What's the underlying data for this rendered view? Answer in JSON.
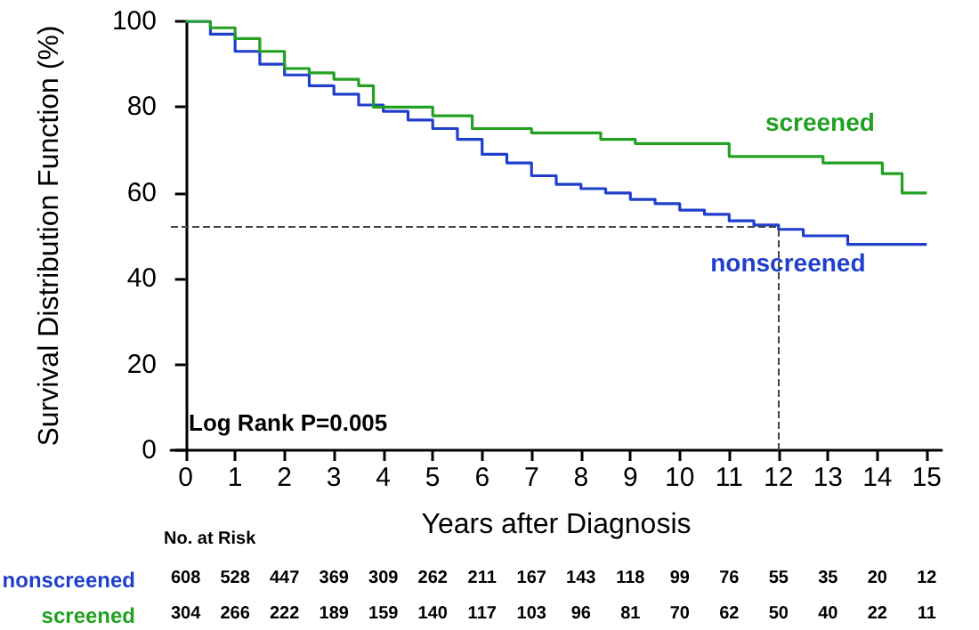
{
  "chart_data": {
    "type": "step",
    "xlabel": "Years after Diagnosis",
    "ylabel": "Survival Distribution Function (%)",
    "xlim": [
      -0.3,
      15.3
    ],
    "xticks": [
      0,
      1,
      2,
      3,
      4,
      5,
      6,
      7,
      8,
      9,
      10,
      11,
      12,
      13,
      14,
      15
    ],
    "ylim": [
      0,
      100
    ],
    "yticks": [
      0,
      20,
      40,
      60,
      80,
      100
    ],
    "grid": false,
    "legend": false,
    "marker": "none",
    "line_style": "solid",
    "series": [
      {
        "name": "nonscreened",
        "color": "#1f3fcc",
        "x": [
          0,
          0.5,
          1,
          1.5,
          2,
          2.5,
          3,
          3.5,
          4,
          4.5,
          5,
          5.5,
          6,
          6.5,
          7,
          7.5,
          8,
          8.5,
          9,
          9.5,
          10,
          10.5,
          11,
          11.5,
          12,
          12.5,
          13,
          13.4,
          15
        ],
        "values": [
          100,
          97,
          93,
          90,
          87.5,
          85,
          83,
          80.5,
          79,
          77,
          75,
          72.5,
          69,
          67,
          64,
          62,
          61,
          60,
          58.5,
          57.5,
          56,
          55,
          53.5,
          52.5,
          51.5,
          50,
          50,
          48,
          48
        ]
      },
      {
        "name": "screened",
        "color": "#22a022",
        "x": [
          0,
          0.5,
          1,
          1.5,
          2,
          2.5,
          3,
          3.5,
          3.8,
          4.5,
          5,
          5.8,
          7,
          8.4,
          9.1,
          11,
          12.9,
          14.1,
          14.5,
          15
        ],
        "values": [
          100,
          98.5,
          96,
          93,
          89,
          88,
          86.5,
          85,
          80,
          80,
          78,
          75,
          74,
          72.5,
          71.5,
          68.5,
          67,
          64.5,
          60,
          60
        ]
      }
    ],
    "ref_lines": [
      {
        "axis": "y",
        "value": 52,
        "line_style": "dashed",
        "color": "#444444"
      },
      {
        "axis": "x",
        "value": 12,
        "line_style": "dashed",
        "color": "#444444"
      }
    ],
    "annotations": [
      "Log Rank P=0.005",
      "No. at Risk",
      "608 528 447 369 309 262 211 167 143 118 99 76 55 35 20 12",
      "304 266 222 189 159 140 117 103 96 81 70 62 50 40 22 11"
    ]
  }
}
